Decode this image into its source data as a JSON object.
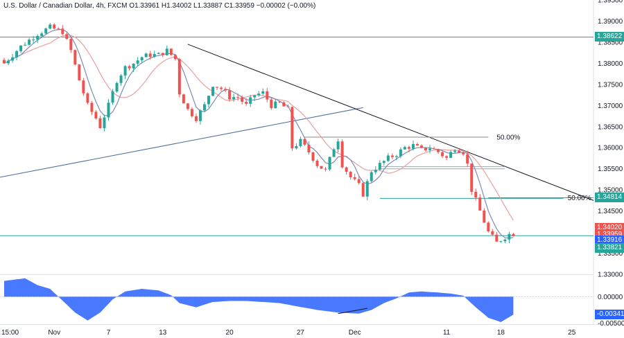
{
  "legend": {
    "symbol": "U.S. Dollar / Canadian Dollar, 4h, FXCM",
    "ohlc": "O1.33961  H1.34002  L1.33887  C1.33959  −0.00002 (−0.00%)"
  },
  "colors": {
    "up": "#26a69a",
    "down": "#ef5350",
    "ma_fast": "#7b8ab8",
    "ma_slow": "#e8a0a0",
    "level": "#26a69a",
    "trendline": "#131722",
    "fib": "#7e6aa8",
    "histogram": "#2962ff"
  },
  "price_tags": [
    {
      "label": "1.38622",
      "color": "#26a69a"
    },
    {
      "label": "1.34814",
      "color": "#26a69a"
    },
    {
      "label": "1.34020",
      "color": "#ef5350"
    },
    {
      "label": "1.33959",
      "color": "#ef5350"
    },
    {
      "label": "1.33916",
      "color": "#2962ff"
    },
    {
      "label": "1.33821",
      "color": "#26a69a"
    }
  ],
  "annotations": [
    {
      "text": "50.00%",
      "color": "#7e6aa8"
    },
    {
      "text": "50.00%",
      "color": "#26a69a"
    }
  ],
  "chart_data": [
    {
      "type": "candlestick",
      "title": "U.S. Dollar / Canadian Dollar, 4h, FXCM",
      "x_ticks": [
        "15:00",
        "Nov",
        "7",
        "13",
        "20",
        "27",
        "Dec",
        "11",
        "18",
        "25"
      ],
      "y_ticks": [
        "1.39500",
        "1.39000",
        "1.38500",
        "1.38000",
        "1.37500",
        "1.37000",
        "1.36500",
        "1.36000",
        "1.35500",
        "1.35000",
        "1.34500",
        "1.34000",
        "1.33500",
        "1.33000"
      ],
      "ylim": [
        1.33,
        1.395
      ],
      "close_path": [
        [
          0,
          1.38
        ],
        [
          4,
          1.384
        ],
        [
          8,
          1.387
        ],
        [
          11,
          1.3885
        ],
        [
          14,
          1.3875
        ],
        [
          16,
          1.383
        ],
        [
          18,
          1.376
        ],
        [
          20,
          1.37
        ],
        [
          22,
          1.367
        ],
        [
          23,
          1.365
        ],
        [
          25,
          1.37
        ],
        [
          27,
          1.376
        ],
        [
          29,
          1.379
        ],
        [
          31,
          1.38
        ],
        [
          33,
          1.3815
        ],
        [
          35,
          1.382
        ],
        [
          37,
          1.382
        ],
        [
          39,
          1.383
        ],
        [
          41,
          1.381
        ],
        [
          42,
          1.373
        ],
        [
          44,
          1.369
        ],
        [
          46,
          1.367
        ],
        [
          48,
          1.37
        ],
        [
          50,
          1.375
        ],
        [
          52,
          1.374
        ],
        [
          54,
          1.372
        ],
        [
          56,
          1.372
        ],
        [
          58,
          1.37
        ],
        [
          60,
          1.3725
        ],
        [
          62,
          1.373
        ],
        [
          64,
          1.37
        ],
        [
          66,
          1.3705
        ],
        [
          68,
          1.369
        ],
        [
          69,
          1.36
        ],
        [
          71,
          1.3615
        ],
        [
          73,
          1.359
        ],
        [
          75,
          1.356
        ],
        [
          77,
          1.3545
        ],
        [
          79,
          1.36
        ],
        [
          80,
          1.362
        ],
        [
          81,
          1.356
        ],
        [
          83,
          1.353
        ],
        [
          85,
          1.351
        ],
        [
          86,
          1.349
        ],
        [
          88,
          1.3545
        ],
        [
          90,
          1.356
        ],
        [
          92,
          1.3575
        ],
        [
          94,
          1.3585
        ],
        [
          96,
          1.36
        ],
        [
          98,
          1.3605
        ],
        [
          100,
          1.3595
        ],
        [
          102,
          1.36
        ],
        [
          104,
          1.359
        ],
        [
          106,
          1.3575
        ],
        [
          108,
          1.36
        ],
        [
          110,
          1.359
        ],
        [
          111,
          1.356
        ],
        [
          112,
          1.35
        ],
        [
          114,
          1.345
        ],
        [
          116,
          1.34
        ],
        [
          118,
          1.3375
        ],
        [
          119,
          1.3382
        ],
        [
          121,
          1.3395
        ],
        [
          122,
          1.3396
        ]
      ],
      "n_bars": 123,
      "x_tick_bars": [
        0,
        12,
        25,
        38,
        54,
        71,
        84,
        106,
        119,
        136
      ],
      "last_close": 1.33959,
      "horizontal_levels": [
        1.38622,
        1.33916
      ],
      "series": [
        {
          "name": "",
          "kind": "moving-average-fast"
        },
        {
          "name": "",
          "kind": "moving-average-slow"
        }
      ]
    },
    {
      "type": "area",
      "title": "",
      "y_ticks": [
        "0.00000",
        "-0.00341",
        "-0.00500"
      ],
      "ylim": [
        -0.0052,
        0.004
      ],
      "values_path": [
        [
          0,
          0.003
        ],
        [
          5,
          0.0035
        ],
        [
          8,
          0.0022
        ],
        [
          11,
          0.0015
        ],
        [
          13,
          0.0
        ],
        [
          17,
          -0.003
        ],
        [
          20,
          -0.0045
        ],
        [
          23,
          -0.003
        ],
        [
          26,
          -0.0005
        ],
        [
          29,
          0.001
        ],
        [
          33,
          0.0015
        ],
        [
          37,
          0.0012
        ],
        [
          40,
          0.0003
        ],
        [
          42,
          -0.0012
        ],
        [
          46,
          -0.002
        ],
        [
          50,
          -0.001
        ],
        [
          54,
          -0.0008
        ],
        [
          58,
          -0.0008
        ],
        [
          62,
          -0.001
        ],
        [
          66,
          -0.0012
        ],
        [
          70,
          -0.0018
        ],
        [
          75,
          -0.0025
        ],
        [
          80,
          -0.003
        ],
        [
          85,
          -0.0032
        ],
        [
          88,
          -0.0025
        ],
        [
          91,
          -0.0012
        ],
        [
          94,
          -0.0003
        ],
        [
          97,
          0.0008
        ],
        [
          100,
          0.001
        ],
        [
          104,
          0.0008
        ],
        [
          107,
          0.0006
        ],
        [
          110,
          0.0002
        ],
        [
          113,
          -0.002
        ],
        [
          116,
          -0.004
        ],
        [
          119,
          -0.0048
        ],
        [
          122,
          -0.0034
        ]
      ],
      "last_value": -0.00341
    }
  ]
}
